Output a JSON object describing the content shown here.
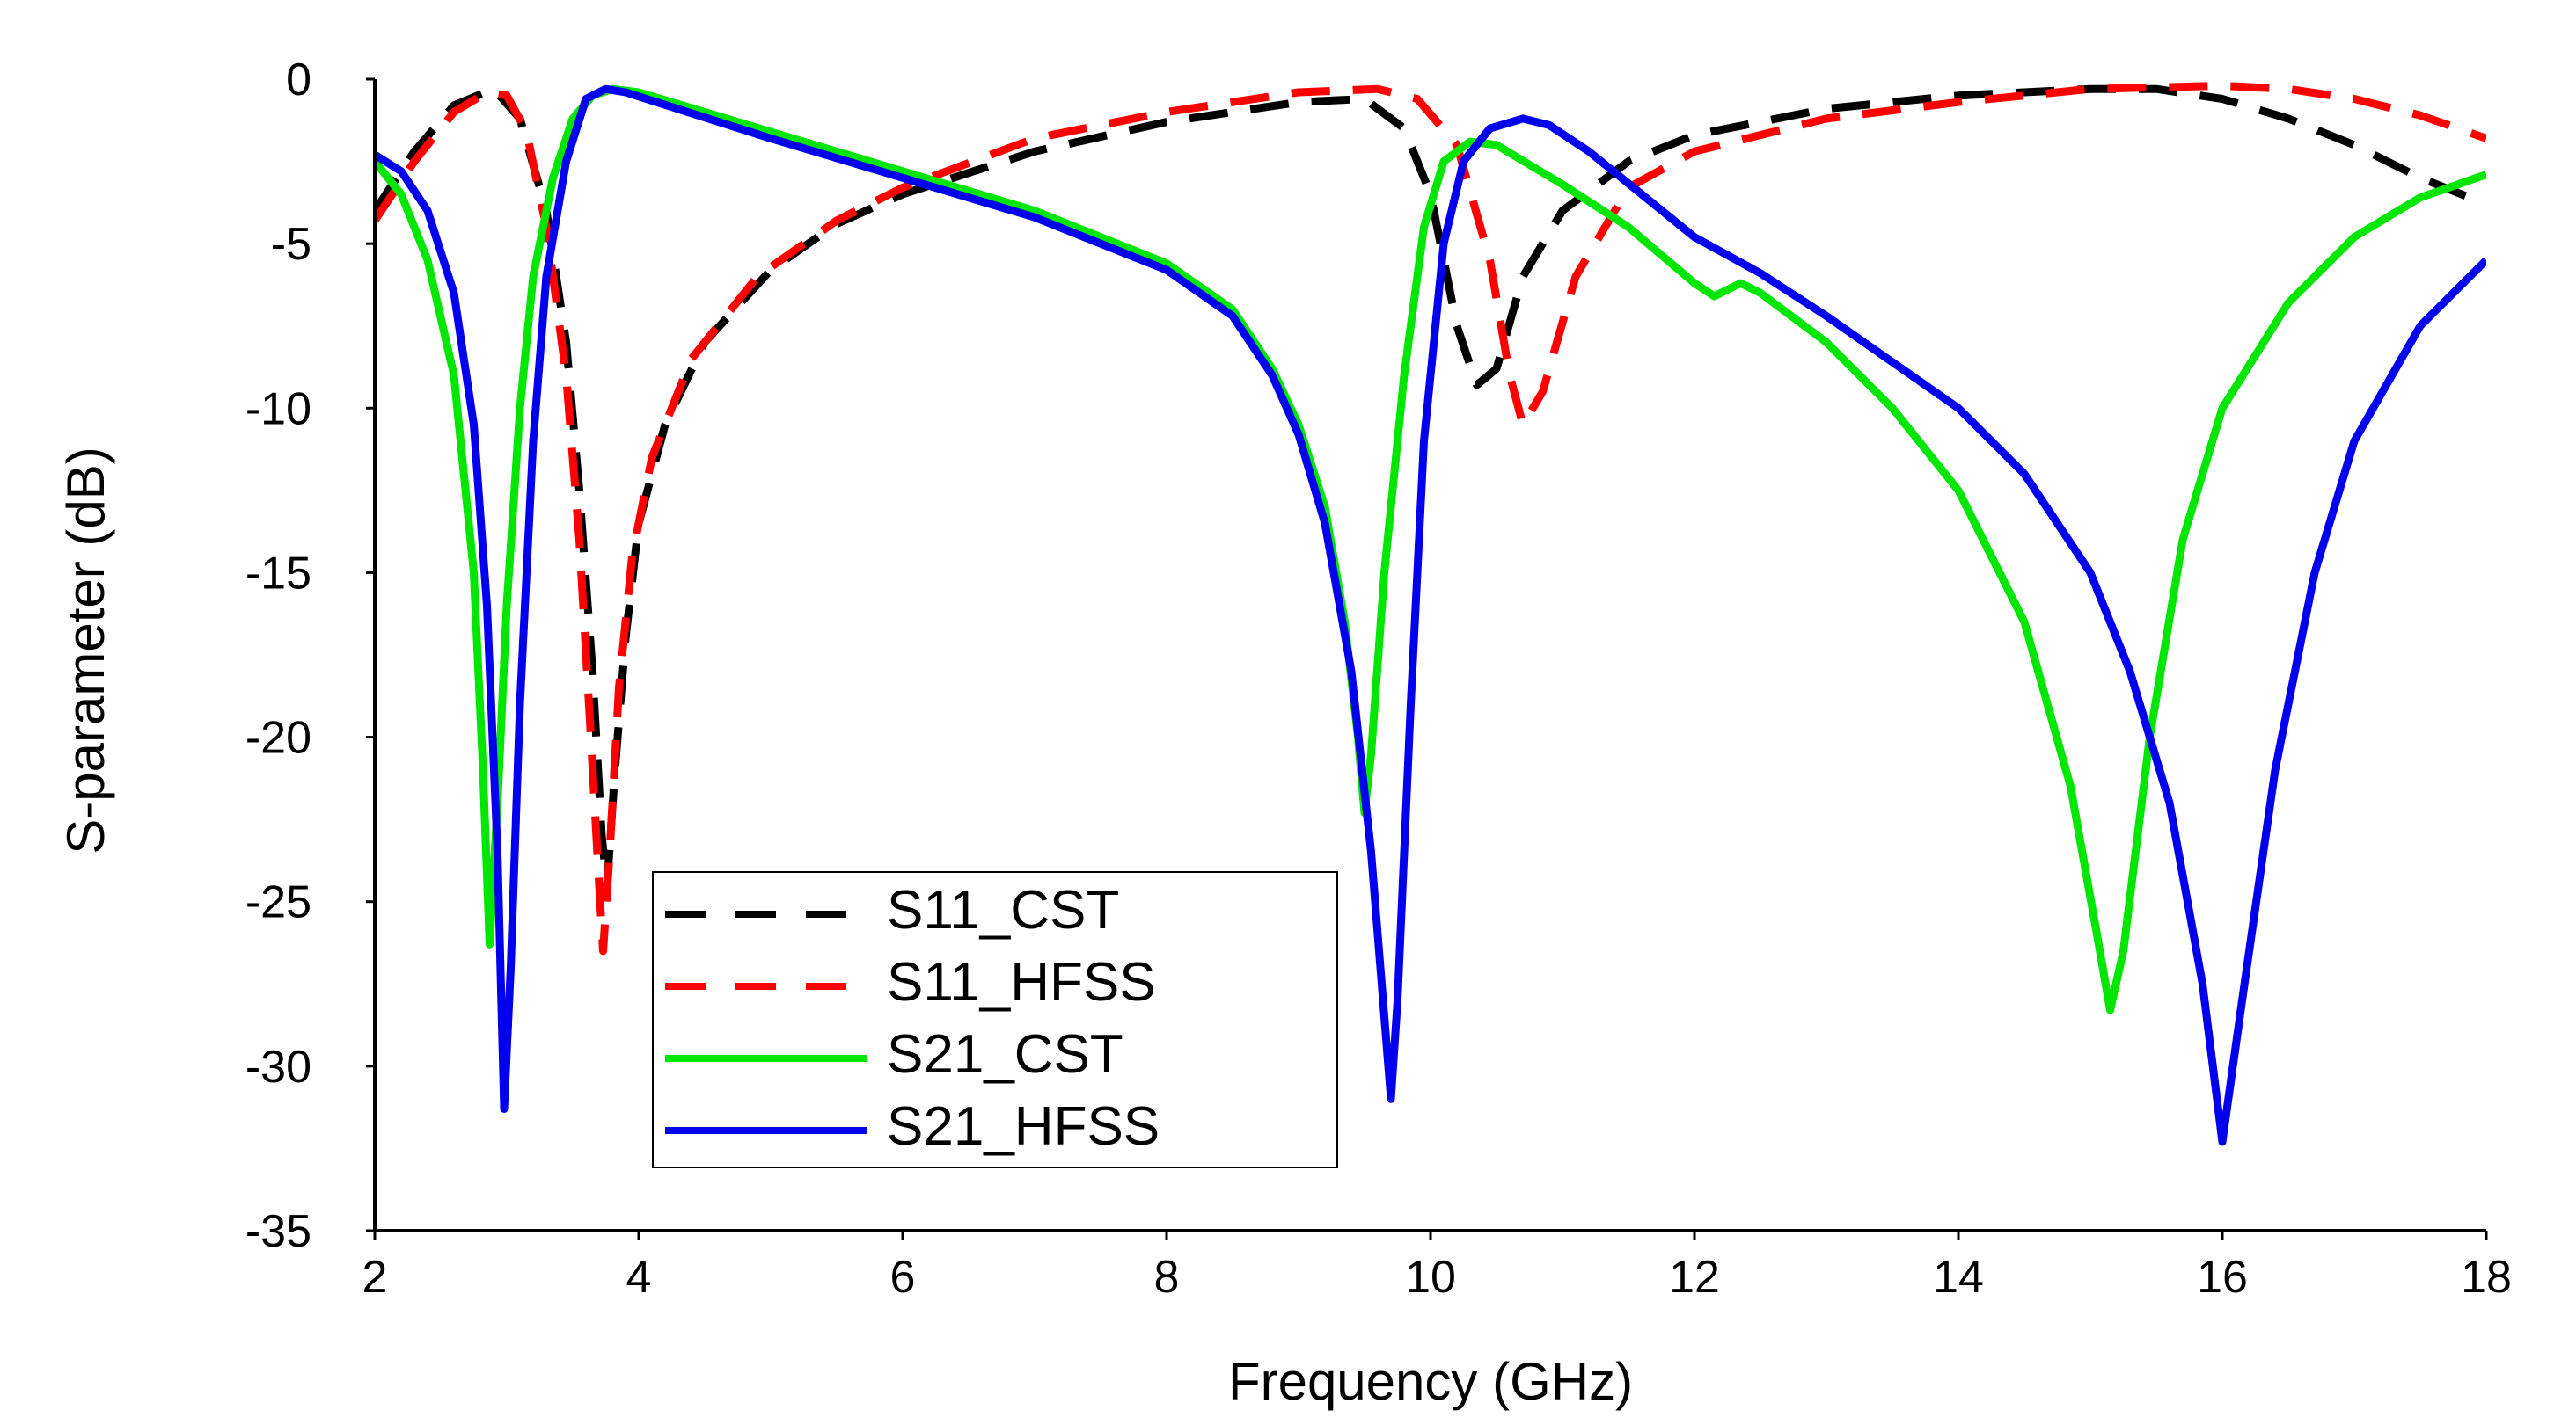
{
  "chart_data": {
    "type": "line",
    "title": "",
    "xlabel": "Frequency (GHz)",
    "ylabel": "S-parameter (dB)",
    "xlim": [
      2,
      18
    ],
    "ylim": [
      -35,
      0
    ],
    "xticks": [
      2,
      4,
      6,
      8,
      10,
      12,
      14,
      16,
      18
    ],
    "yticks": [
      0,
      -5,
      -10,
      -15,
      -20,
      -25,
      -30,
      -35
    ],
    "xtick_labels": [
      "2",
      "4",
      "6",
      "8",
      "10",
      "12",
      "14",
      "16",
      "18"
    ],
    "ytick_labels": [
      "0",
      "-5",
      "-10",
      "-15",
      "-20",
      "-25",
      "-30",
      "-35"
    ],
    "grid": false,
    "legend_position": "bottom-left",
    "series": [
      {
        "name": "S11_CST",
        "color": "#000000",
        "dash": "dashed",
        "points": [
          [
            2.0,
            -4.0
          ],
          [
            2.3,
            -2.2
          ],
          [
            2.6,
            -0.8
          ],
          [
            2.9,
            -0.3
          ],
          [
            3.1,
            -1.2
          ],
          [
            3.3,
            -4.0
          ],
          [
            3.45,
            -8.0
          ],
          [
            3.55,
            -12.5
          ],
          [
            3.65,
            -18.0
          ],
          [
            3.72,
            -23.0
          ],
          [
            3.76,
            -24.5
          ],
          [
            3.82,
            -21.0
          ],
          [
            3.9,
            -17.0
          ],
          [
            4.0,
            -13.5
          ],
          [
            4.2,
            -10.5
          ],
          [
            4.5,
            -8.0
          ],
          [
            5.0,
            -5.8
          ],
          [
            5.5,
            -4.4
          ],
          [
            6.0,
            -3.5
          ],
          [
            7.0,
            -2.2
          ],
          [
            8.0,
            -1.3
          ],
          [
            9.0,
            -0.7
          ],
          [
            9.5,
            -0.6
          ],
          [
            9.8,
            -1.5
          ],
          [
            10.0,
            -3.5
          ],
          [
            10.2,
            -7.5
          ],
          [
            10.35,
            -9.3
          ],
          [
            10.5,
            -8.8
          ],
          [
            10.7,
            -6.0
          ],
          [
            11.0,
            -4.0
          ],
          [
            11.5,
            -2.5
          ],
          [
            12.0,
            -1.7
          ],
          [
            13.0,
            -0.9
          ],
          [
            14.0,
            -0.5
          ],
          [
            15.0,
            -0.3
          ],
          [
            15.5,
            -0.3
          ],
          [
            16.0,
            -0.6
          ],
          [
            16.5,
            -1.2
          ],
          [
            17.0,
            -2.0
          ],
          [
            17.5,
            -3.0
          ],
          [
            18.0,
            -3.8
          ]
        ]
      },
      {
        "name": "S11_HFSS",
        "color": "#ff0000",
        "dash": "dashed",
        "points": [
          [
            2.0,
            -4.3
          ],
          [
            2.3,
            -2.5
          ],
          [
            2.6,
            -1.0
          ],
          [
            2.85,
            -0.4
          ],
          [
            3.0,
            -0.5
          ],
          [
            3.15,
            -1.6
          ],
          [
            3.3,
            -4.5
          ],
          [
            3.45,
            -9.0
          ],
          [
            3.55,
            -14.0
          ],
          [
            3.63,
            -19.5
          ],
          [
            3.7,
            -24.5
          ],
          [
            3.73,
            -26.5
          ],
          [
            3.78,
            -23.5
          ],
          [
            3.85,
            -18.5
          ],
          [
            3.95,
            -14.5
          ],
          [
            4.1,
            -11.5
          ],
          [
            4.4,
            -8.5
          ],
          [
            4.9,
            -6.0
          ],
          [
            5.5,
            -4.3
          ],
          [
            6.0,
            -3.3
          ],
          [
            7.0,
            -1.8
          ],
          [
            8.0,
            -1.0
          ],
          [
            9.0,
            -0.4
          ],
          [
            9.6,
            -0.3
          ],
          [
            9.9,
            -0.6
          ],
          [
            10.2,
            -2.0
          ],
          [
            10.45,
            -5.5
          ],
          [
            10.6,
            -9.0
          ],
          [
            10.7,
            -10.5
          ],
          [
            10.85,
            -9.5
          ],
          [
            11.1,
            -6.0
          ],
          [
            11.5,
            -3.3
          ],
          [
            12.0,
            -2.2
          ],
          [
            13.0,
            -1.2
          ],
          [
            14.0,
            -0.7
          ],
          [
            15.0,
            -0.3
          ],
          [
            16.0,
            -0.2
          ],
          [
            16.5,
            -0.3
          ],
          [
            17.0,
            -0.6
          ],
          [
            17.5,
            -1.1
          ],
          [
            18.0,
            -1.8
          ]
        ]
      },
      {
        "name": "S21_CST",
        "color": "#00e600",
        "dash": "solid",
        "points": [
          [
            2.0,
            -2.5
          ],
          [
            2.2,
            -3.5
          ],
          [
            2.4,
            -5.5
          ],
          [
            2.6,
            -9.0
          ],
          [
            2.75,
            -15.0
          ],
          [
            2.82,
            -21.0
          ],
          [
            2.87,
            -26.3
          ],
          [
            2.93,
            -22.0
          ],
          [
            3.0,
            -16.0
          ],
          [
            3.1,
            -10.0
          ],
          [
            3.2,
            -6.0
          ],
          [
            3.35,
            -3.0
          ],
          [
            3.5,
            -1.2
          ],
          [
            3.65,
            -0.5
          ],
          [
            3.8,
            -0.3
          ],
          [
            4.0,
            -0.4
          ],
          [
            5.0,
            -1.6
          ],
          [
            6.0,
            -2.8
          ],
          [
            7.0,
            -4.0
          ],
          [
            8.0,
            -5.6
          ],
          [
            8.5,
            -7.0
          ],
          [
            8.8,
            -8.8
          ],
          [
            9.0,
            -10.5
          ],
          [
            9.2,
            -13.0
          ],
          [
            9.35,
            -16.5
          ],
          [
            9.45,
            -20.0
          ],
          [
            9.5,
            -22.3
          ],
          [
            9.55,
            -20.5
          ],
          [
            9.65,
            -15.0
          ],
          [
            9.8,
            -9.0
          ],
          [
            9.95,
            -4.5
          ],
          [
            10.1,
            -2.5
          ],
          [
            10.3,
            -1.9
          ],
          [
            10.5,
            -2.0
          ],
          [
            11.0,
            -3.2
          ],
          [
            11.5,
            -4.5
          ],
          [
            12.0,
            -6.2
          ],
          [
            12.15,
            -6.6
          ],
          [
            12.35,
            -6.2
          ],
          [
            12.5,
            -6.5
          ],
          [
            13.0,
            -8.0
          ],
          [
            13.5,
            -10.0
          ],
          [
            14.0,
            -12.5
          ],
          [
            14.5,
            -16.5
          ],
          [
            14.85,
            -21.5
          ],
          [
            15.05,
            -26.0
          ],
          [
            15.15,
            -28.3
          ],
          [
            15.25,
            -26.5
          ],
          [
            15.45,
            -20.0
          ],
          [
            15.7,
            -14.0
          ],
          [
            16.0,
            -10.0
          ],
          [
            16.5,
            -6.8
          ],
          [
            17.0,
            -4.8
          ],
          [
            17.5,
            -3.6
          ],
          [
            18.0,
            -2.9
          ]
        ]
      },
      {
        "name": "S21_HFSS",
        "color": "#0000ee",
        "dash": "solid",
        "points": [
          [
            2.0,
            -2.3
          ],
          [
            2.2,
            -2.8
          ],
          [
            2.4,
            -4.0
          ],
          [
            2.6,
            -6.5
          ],
          [
            2.75,
            -10.5
          ],
          [
            2.85,
            -16.0
          ],
          [
            2.93,
            -23.5
          ],
          [
            2.98,
            -31.3
          ],
          [
            3.03,
            -27.0
          ],
          [
            3.1,
            -19.0
          ],
          [
            3.2,
            -11.0
          ],
          [
            3.3,
            -6.0
          ],
          [
            3.45,
            -2.5
          ],
          [
            3.6,
            -0.6
          ],
          [
            3.75,
            -0.3
          ],
          [
            3.9,
            -0.4
          ],
          [
            5.0,
            -1.8
          ],
          [
            6.0,
            -3.0
          ],
          [
            7.0,
            -4.2
          ],
          [
            8.0,
            -5.8
          ],
          [
            8.5,
            -7.2
          ],
          [
            8.8,
            -9.0
          ],
          [
            9.0,
            -10.8
          ],
          [
            9.2,
            -13.5
          ],
          [
            9.4,
            -18.0
          ],
          [
            9.55,
            -23.5
          ],
          [
            9.65,
            -28.5
          ],
          [
            9.7,
            -31.0
          ],
          [
            9.75,
            -28.0
          ],
          [
            9.85,
            -19.0
          ],
          [
            9.95,
            -11.0
          ],
          [
            10.1,
            -5.0
          ],
          [
            10.25,
            -2.5
          ],
          [
            10.45,
            -1.5
          ],
          [
            10.7,
            -1.2
          ],
          [
            10.9,
            -1.4
          ],
          [
            11.2,
            -2.2
          ],
          [
            11.6,
            -3.5
          ],
          [
            12.0,
            -4.8
          ],
          [
            12.5,
            -5.9
          ],
          [
            13.0,
            -7.2
          ],
          [
            13.5,
            -8.6
          ],
          [
            14.0,
            -10.0
          ],
          [
            14.5,
            -12.0
          ],
          [
            15.0,
            -15.0
          ],
          [
            15.3,
            -18.0
          ],
          [
            15.6,
            -22.0
          ],
          [
            15.85,
            -27.5
          ],
          [
            16.0,
            -32.3
          ],
          [
            16.15,
            -28.0
          ],
          [
            16.4,
            -21.0
          ],
          [
            16.7,
            -15.0
          ],
          [
            17.0,
            -11.0
          ],
          [
            17.5,
            -7.5
          ],
          [
            18.0,
            -5.5
          ]
        ]
      }
    ]
  }
}
